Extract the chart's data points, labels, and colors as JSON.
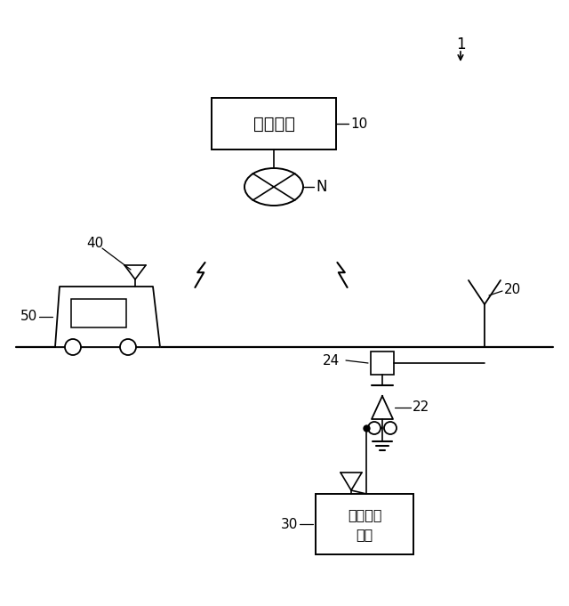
{
  "bg_color": "#ffffff",
  "label_1": "1",
  "label_10": "10",
  "label_N": "N",
  "label_40": "40",
  "label_50": "50",
  "label_24": "24",
  "label_22": "22",
  "label_20": "20",
  "label_30": "30",
  "text_chuo": "中央装置",
  "text_fumikiri1": "踏切制御",
  "text_fumikiri2": "装置",
  "figsize": [
    6.4,
    6.81
  ],
  "dpi": 100
}
